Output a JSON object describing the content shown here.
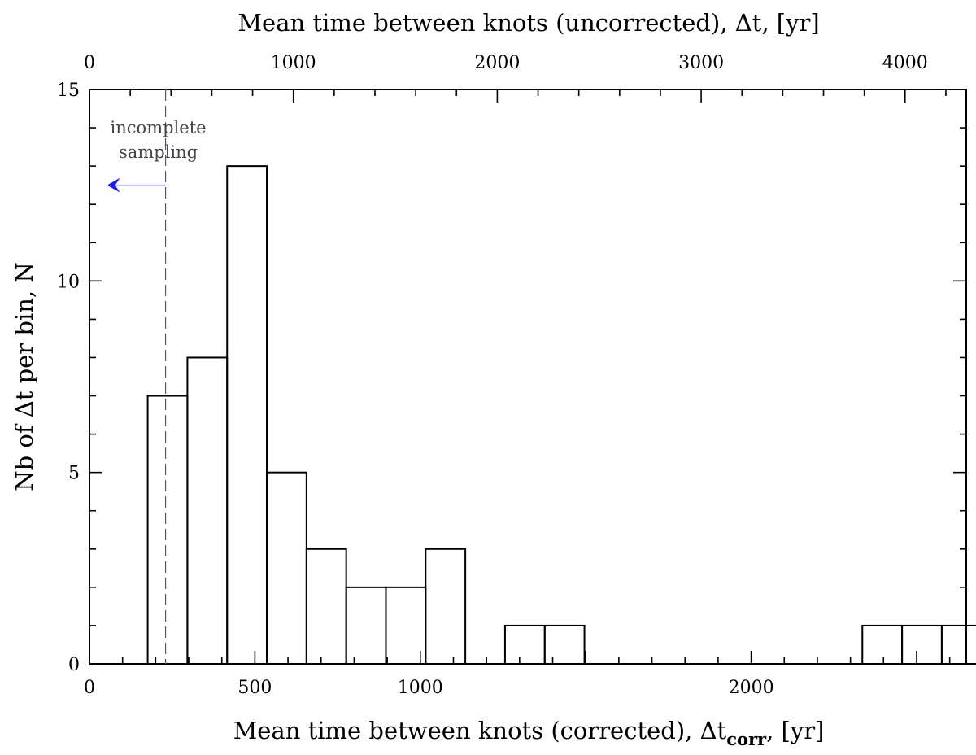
{
  "chart_data": {
    "type": "bar",
    "histogram": true,
    "bin_edges": [
      176,
      296,
      416,
      536,
      656,
      776,
      896,
      1016,
      1136,
      1256,
      1376,
      1496,
      1616,
      1736,
      1856,
      1976,
      2096,
      2216,
      2336,
      2456,
      2576,
      2696
    ],
    "values": [
      7,
      8,
      13,
      5,
      3,
      2,
      2,
      3,
      0,
      1,
      1,
      0,
      0,
      0,
      0,
      0,
      0,
      0,
      1,
      1,
      1
    ],
    "xlabel": "Mean time between knots (corrected), Δt",
    "xlabel_sub": "corr",
    "xlabel_tail": ", [yr]",
    "ylabel": "Nb of Δt per bin, N",
    "top_xlabel": "Mean time between knots (uncorrected), Δt, [yr]",
    "xlim": [
      0,
      2650
    ],
    "ylim": [
      0,
      15
    ],
    "x_ticks": [
      0,
      500,
      1000,
      2000
    ],
    "y_ticks": [
      0,
      5,
      10,
      15
    ],
    "top_xlim": [
      0,
      4300
    ],
    "top_x_ticks": [
      0,
      1000,
      2000,
      3000,
      4000
    ],
    "annotation": {
      "lines": [
        "incomplete",
        "sampling"
      ],
      "threshold_x": 230,
      "arrow_y": 12.5,
      "line_color": "#4a4acc",
      "arrow_color": "#1a1aff"
    },
    "grid": false,
    "legend": "none"
  }
}
